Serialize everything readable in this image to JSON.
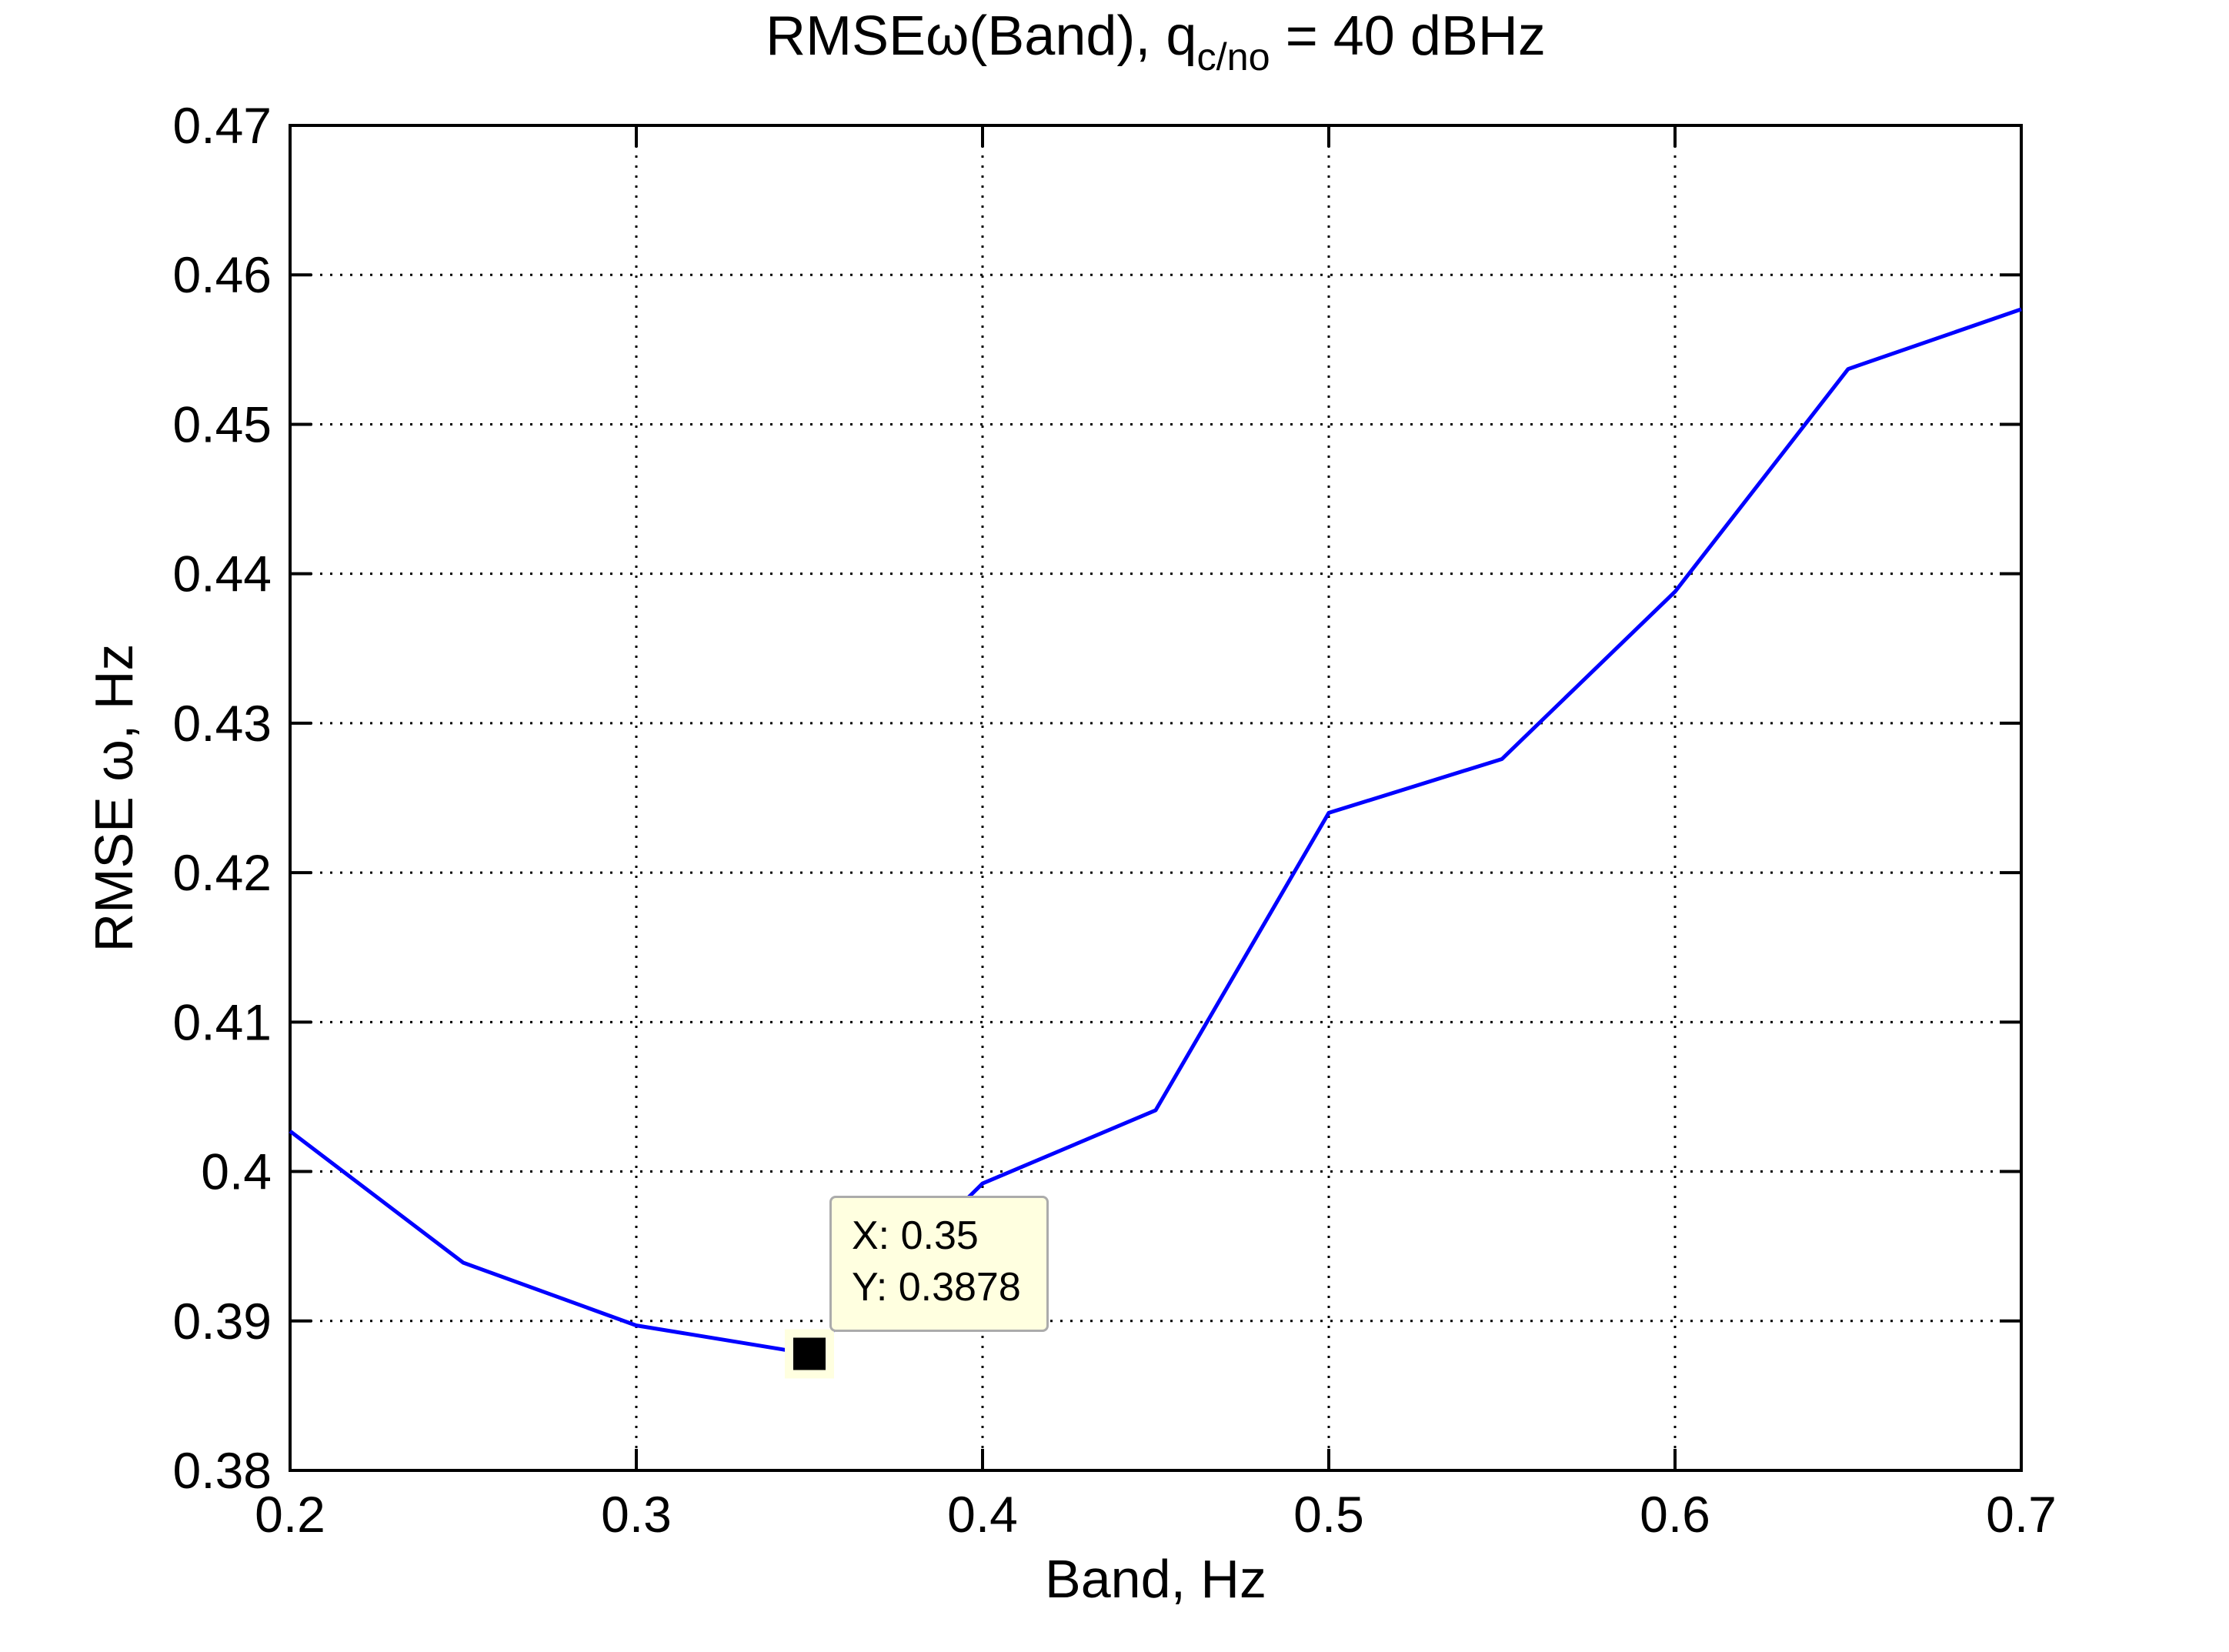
{
  "chart_data": {
    "type": "line",
    "title": {
      "before_sub": "RMSEω(Band), q",
      "sub": "c/no",
      "after_sub": " = 40 dBHz"
    },
    "xlabel": "Band, Hz",
    "ylabel": "RMSE ω, Hz",
    "x": [
      0.2,
      0.25,
      0.3,
      0.35,
      0.4,
      0.45,
      0.5,
      0.55,
      0.6,
      0.65,
      0.7
    ],
    "y": [
      0.4027,
      0.3939,
      0.3897,
      0.3878,
      0.3992,
      0.4041,
      0.424,
      0.4276,
      0.4388,
      0.4537,
      0.4577
    ],
    "xlim": [
      0.2,
      0.7
    ],
    "ylim": [
      0.38,
      0.47
    ],
    "xticks": [
      0.2,
      0.3,
      0.4,
      0.5,
      0.6,
      0.7
    ],
    "xtick_labels": [
      "0.2",
      "0.3",
      "0.4",
      "0.5",
      "0.6",
      "0.7"
    ],
    "yticks": [
      0.38,
      0.39,
      0.4,
      0.41,
      0.42,
      0.43,
      0.44,
      0.45,
      0.46,
      0.47
    ],
    "ytick_labels": [
      "0.38",
      "0.39",
      "0.4",
      "0.41",
      "0.42",
      "0.43",
      "0.44",
      "0.45",
      "0.46",
      "0.47"
    ],
    "grid": true,
    "legend_position": "none",
    "line_color": "#0000ff",
    "datatip": {
      "x": 0.35,
      "y": 0.3878,
      "line1": "X: 0.35",
      "line2": "Y: 0.3878",
      "marker_color": "#000000",
      "bg": "#ffffe0",
      "border": "#ababab"
    }
  }
}
